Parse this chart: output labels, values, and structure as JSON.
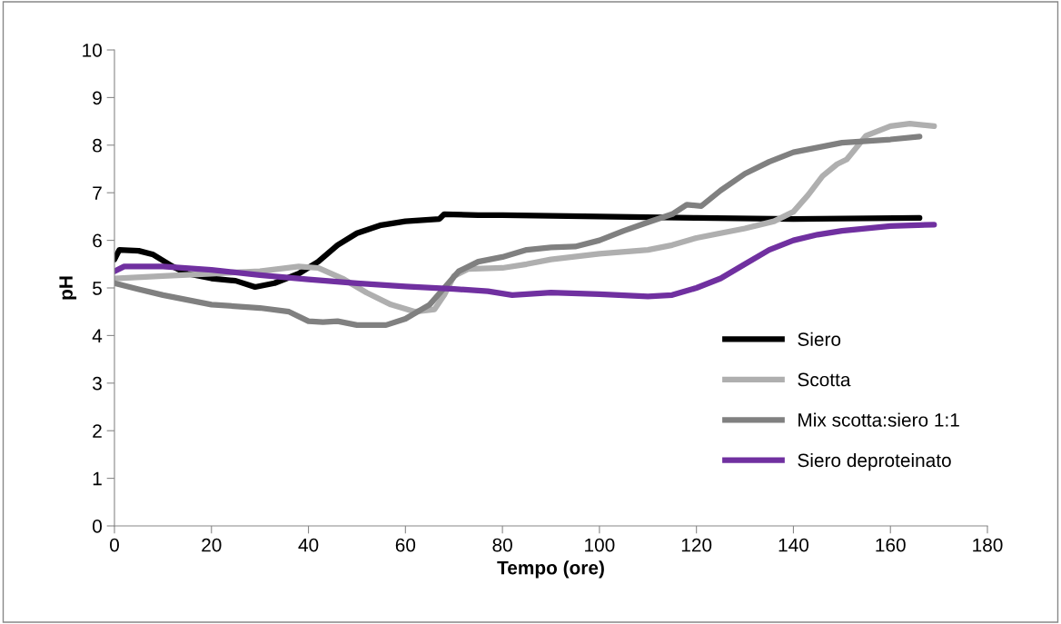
{
  "chart_data": {
    "type": "line",
    "xlabel": "Tempo (ore)",
    "ylabel": "pH",
    "xlim": [
      0,
      180
    ],
    "xticks": [
      0,
      20,
      40,
      60,
      80,
      100,
      120,
      140,
      160,
      180
    ],
    "ylim": [
      0,
      10
    ],
    "yticks": [
      0,
      1,
      2,
      3,
      4,
      5,
      6,
      7,
      8,
      9,
      10
    ],
    "grid": false,
    "legend": "right",
    "marker": "none",
    "line_style": "solid",
    "series": [
      {
        "name": "Siero",
        "color": "#000000",
        "x": [
          0,
          1,
          5,
          8,
          12,
          15,
          20,
          25,
          29,
          33,
          38,
          42,
          46,
          50,
          55,
          60,
          67,
          68,
          75,
          80,
          100,
          120,
          140,
          166
        ],
        "values": [
          5.6,
          5.8,
          5.78,
          5.7,
          5.45,
          5.3,
          5.2,
          5.15,
          5.02,
          5.1,
          5.3,
          5.55,
          5.9,
          6.15,
          6.32,
          6.4,
          6.45,
          6.55,
          6.53,
          6.53,
          6.5,
          6.47,
          6.45,
          6.47
        ]
      },
      {
        "name": "Scotta",
        "color": "#afafaf",
        "x": [
          0,
          10,
          20,
          30,
          38,
          42,
          47,
          52,
          57,
          62,
          66,
          68,
          70,
          73,
          80,
          85,
          90,
          100,
          110,
          115,
          120,
          130,
          136,
          140,
          143,
          146,
          149,
          151,
          155,
          160,
          164,
          169
        ],
        "values": [
          5.2,
          5.25,
          5.3,
          5.35,
          5.45,
          5.42,
          5.2,
          4.9,
          4.65,
          4.5,
          4.55,
          4.85,
          5.25,
          5.4,
          5.42,
          5.5,
          5.6,
          5.72,
          5.8,
          5.9,
          6.05,
          6.25,
          6.4,
          6.6,
          6.95,
          7.35,
          7.6,
          7.7,
          8.2,
          8.4,
          8.45,
          8.4
        ]
      },
      {
        "name": "Mix scotta:siero 1:1",
        "color": "#808080",
        "x": [
          0,
          5,
          10,
          20,
          30,
          36,
          40,
          43,
          46,
          50,
          56,
          60,
          65,
          68,
          71,
          75,
          80,
          85,
          90,
          95,
          100,
          105,
          110,
          115,
          118,
          121,
          125,
          130,
          135,
          140,
          150,
          160,
          166
        ],
        "values": [
          5.1,
          4.97,
          4.85,
          4.65,
          4.58,
          4.5,
          4.3,
          4.28,
          4.3,
          4.22,
          4.22,
          4.35,
          4.65,
          5.0,
          5.35,
          5.55,
          5.65,
          5.8,
          5.85,
          5.87,
          6.0,
          6.2,
          6.38,
          6.55,
          6.75,
          6.72,
          7.05,
          7.4,
          7.65,
          7.85,
          8.05,
          8.12,
          8.18
        ]
      },
      {
        "name": "Siero deproteinato",
        "color": "#7030a0",
        "x": [
          0,
          2,
          10,
          20,
          30,
          40,
          50,
          60,
          70,
          77,
          82,
          90,
          100,
          110,
          115,
          120,
          125,
          130,
          135,
          140,
          145,
          150,
          160,
          169
        ],
        "values": [
          5.35,
          5.45,
          5.45,
          5.38,
          5.27,
          5.18,
          5.1,
          5.03,
          4.98,
          4.93,
          4.85,
          4.9,
          4.87,
          4.82,
          4.85,
          5.0,
          5.2,
          5.5,
          5.8,
          6.0,
          6.12,
          6.2,
          6.3,
          6.33
        ]
      }
    ]
  }
}
